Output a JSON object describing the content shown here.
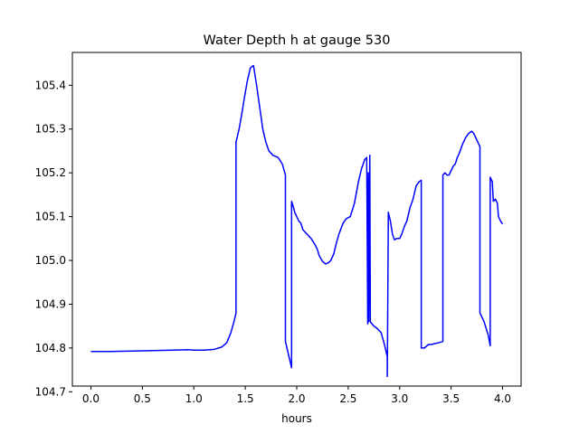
{
  "chart_data": {
    "type": "line",
    "title": "Water Depth h at gauge 530",
    "xlabel": "hours",
    "ylabel": "",
    "xlim": [
      -0.18,
      4.18
    ],
    "ylim": [
      104.713,
      105.475
    ],
    "xticks": [
      0.0,
      0.5,
      1.0,
      1.5,
      2.0,
      2.5,
      3.0,
      3.5,
      4.0
    ],
    "xtick_labels": [
      "0.0",
      "0.5",
      "1.0",
      "1.5",
      "2.0",
      "2.5",
      "3.0",
      "3.5",
      "4.0"
    ],
    "yticks": [
      104.7,
      104.8,
      104.9,
      105.0,
      105.1,
      105.2,
      105.3,
      105.4
    ],
    "ytick_labels": [
      "104.7",
      "104.8",
      "104.9",
      "105.0",
      "105.1",
      "105.2",
      "105.3",
      "105.4"
    ],
    "grid": false,
    "series": [
      {
        "color": "#0000ff",
        "x": [
          0.0,
          0.2,
          0.4,
          0.6,
          0.8,
          0.95,
          1.0,
          1.1,
          1.2,
          1.27,
          1.32,
          1.36,
          1.39,
          1.41,
          1.41,
          1.44,
          1.47,
          1.49,
          1.52,
          1.55,
          1.58,
          1.61,
          1.64,
          1.67,
          1.7,
          1.73,
          1.77,
          1.82,
          1.86,
          1.89,
          1.89,
          1.95,
          1.95,
          1.97,
          1.98,
          2.0,
          2.02,
          2.04,
          2.06,
          2.1,
          2.14,
          2.18,
          2.2,
          2.22,
          2.25,
          2.28,
          2.31,
          2.33,
          2.36,
          2.38,
          2.41,
          2.45,
          2.48,
          2.52,
          2.56,
          2.6,
          2.63,
          2.66,
          2.68,
          2.69,
          2.695,
          2.7,
          2.71,
          2.715,
          2.718,
          2.72,
          2.75,
          2.78,
          2.82,
          2.85,
          2.88,
          2.88,
          2.89,
          2.91,
          2.93,
          2.95,
          2.97,
          3.0,
          3.02,
          3.05,
          3.07,
          3.1,
          3.13,
          3.16,
          3.19,
          3.21,
          3.21,
          3.24,
          3.28,
          3.31,
          3.34,
          3.38,
          3.42,
          3.42,
          3.44,
          3.46,
          3.48,
          3.5,
          3.52,
          3.54,
          3.56,
          3.58,
          3.61,
          3.64,
          3.67,
          3.7,
          3.72,
          3.74,
          3.76,
          3.78,
          3.78,
          3.82,
          3.86,
          3.88,
          3.88,
          3.9,
          3.91,
          3.93,
          3.95,
          3.96,
          3.98,
          4.0
        ],
        "y": [
          104.792,
          104.792,
          104.793,
          104.794,
          104.795,
          104.796,
          104.795,
          104.795,
          104.797,
          104.802,
          104.812,
          104.835,
          104.86,
          104.88,
          105.27,
          105.3,
          105.34,
          105.37,
          105.41,
          105.44,
          105.445,
          105.4,
          105.35,
          105.3,
          105.27,
          105.25,
          105.24,
          105.235,
          105.22,
          105.195,
          104.815,
          104.755,
          105.135,
          105.12,
          105.11,
          105.1,
          105.09,
          105.085,
          105.07,
          105.06,
          105.05,
          105.035,
          105.025,
          105.01,
          104.998,
          104.992,
          104.995,
          105.0,
          105.015,
          105.035,
          105.06,
          105.085,
          105.095,
          105.1,
          105.13,
          105.18,
          105.21,
          105.23,
          105.235,
          104.855,
          105.2,
          104.86,
          105.24,
          104.86,
          104.86,
          104.858,
          104.85,
          104.845,
          104.835,
          104.81,
          104.78,
          104.735,
          105.11,
          105.09,
          105.06,
          105.047,
          105.05,
          105.05,
          105.06,
          105.08,
          105.09,
          105.12,
          105.14,
          105.17,
          105.18,
          105.183,
          104.8,
          104.8,
          104.808,
          104.808,
          104.81,
          104.812,
          104.815,
          105.195,
          105.2,
          105.195,
          105.195,
          105.205,
          105.215,
          105.22,
          105.235,
          105.245,
          105.265,
          105.28,
          105.29,
          105.295,
          105.29,
          105.28,
          105.27,
          105.26,
          104.88,
          104.86,
          104.83,
          104.805,
          105.19,
          105.18,
          105.135,
          105.14,
          105.13,
          105.1,
          105.09,
          105.083
        ]
      }
    ]
  }
}
